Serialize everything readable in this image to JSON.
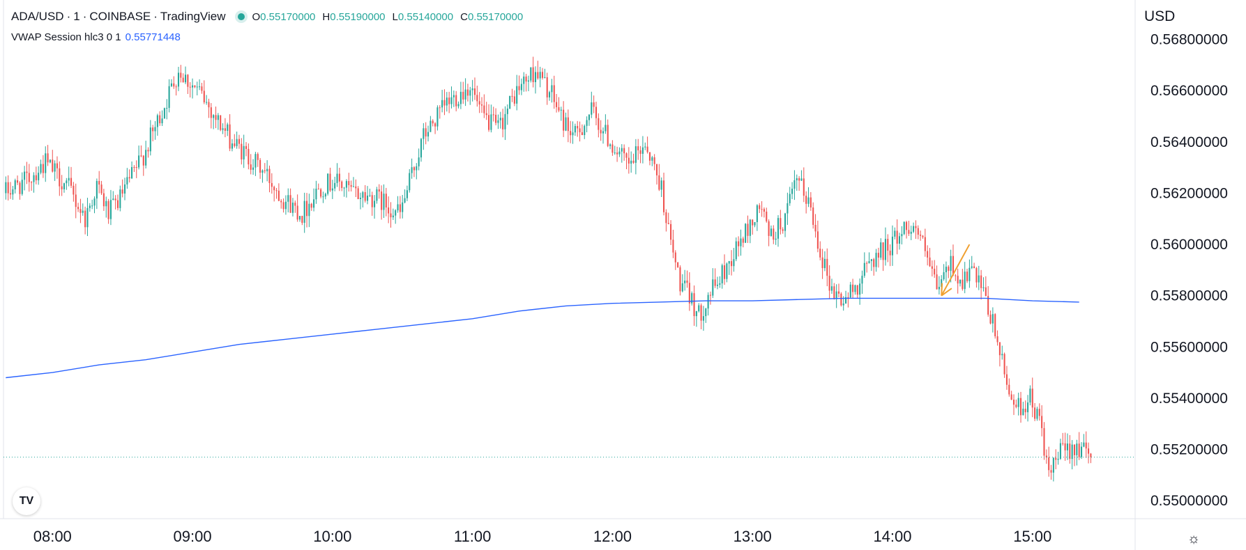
{
  "header": {
    "symbol": "ADA/USD",
    "interval": "1",
    "exchange": "COINBASE",
    "provider": "TradingView",
    "ohlc": {
      "open_label": "O",
      "open": "0.55170000",
      "high_label": "H",
      "high": "0.55190000",
      "low_label": "L",
      "low": "0.55140000",
      "close_label": "C",
      "close": "0.55170000"
    },
    "indicator": {
      "name": "VWAP Session hlc3 0 1",
      "value": "0.55771448"
    }
  },
  "price_axis": {
    "currency": "USD"
  },
  "colors": {
    "up": "#26a69a",
    "down": "#ef5350",
    "vwap": "#2962ff",
    "annotation_arrow": "#f0a030",
    "last_price_line": "#26a69a",
    "axis_border": "#e0e3eb"
  },
  "icons": {
    "logo": "tradingview-logo-icon",
    "settings": "gear-icon"
  },
  "chart_data": {
    "type": "candlestick",
    "title": "ADA/USD · 1 · COINBASE",
    "ylim": [
      0.5493,
      0.5694
    ],
    "y_ticks": [
      "0.55000000",
      "0.55200000",
      "0.55400000",
      "0.55600000",
      "0.55800000",
      "0.56000000",
      "0.56200000",
      "0.56400000",
      "0.56600000",
      "0.56800000"
    ],
    "y_tick_values": [
      0.55,
      0.552,
      0.554,
      0.556,
      0.558,
      0.56,
      0.562,
      0.564,
      0.566,
      0.568
    ],
    "x_ticks": [
      "08:00",
      "09:00",
      "10:00",
      "11:00",
      "12:00",
      "13:00",
      "14:00",
      "15:00"
    ],
    "x_tick_minutes": [
      480,
      540,
      600,
      660,
      720,
      780,
      840,
      900
    ],
    "xlim_minutes": [
      459,
      944
    ],
    "last_close": 0.5517,
    "price_path": {
      "t": [
        460,
        470,
        478,
        488,
        495,
        500,
        505,
        510,
        520,
        528,
        535,
        545,
        552,
        558,
        565,
        572,
        580,
        588,
        595,
        602,
        610,
        620,
        630,
        640,
        650,
        660,
        665,
        672,
        680,
        688,
        695,
        700,
        705,
        712,
        720,
        728,
        735,
        742,
        746,
        750,
        755,
        758,
        762,
        768,
        775,
        785,
        788,
        795,
        800,
        805,
        810,
        815,
        820,
        825,
        832,
        840,
        848,
        852,
        860,
        866,
        870,
        875,
        880,
        885,
        890,
        895,
        900,
        905,
        908,
        912,
        920,
        925
      ],
      "p": [
        0.562,
        0.5625,
        0.5632,
        0.5622,
        0.561,
        0.5623,
        0.5612,
        0.5618,
        0.5635,
        0.5652,
        0.5668,
        0.5658,
        0.5648,
        0.564,
        0.5634,
        0.5628,
        0.5618,
        0.5612,
        0.5622,
        0.5625,
        0.562,
        0.5618,
        0.5612,
        0.5642,
        0.5655,
        0.5662,
        0.565,
        0.5645,
        0.566,
        0.5668,
        0.5658,
        0.5648,
        0.5642,
        0.5652,
        0.564,
        0.563,
        0.564,
        0.5622,
        0.56,
        0.5585,
        0.5578,
        0.5572,
        0.558,
        0.5588,
        0.56,
        0.5615,
        0.5602,
        0.561,
        0.5625,
        0.5617,
        0.5598,
        0.5582,
        0.5578,
        0.5583,
        0.5594,
        0.56,
        0.5608,
        0.5605,
        0.5582,
        0.5593,
        0.5585,
        0.559,
        0.558,
        0.5566,
        0.5545,
        0.5536,
        0.554,
        0.5528,
        0.5508,
        0.5518,
        0.5522,
        0.5517
      ]
    },
    "vwap_line": {
      "name": "VWAP Session hlc3 0 1",
      "t": [
        460,
        480,
        500,
        520,
        540,
        560,
        580,
        600,
        620,
        640,
        660,
        680,
        700,
        720,
        740,
        760,
        780,
        800,
        820,
        840,
        860,
        880,
        900,
        920
      ],
      "values": [
        0.5548,
        0.555,
        0.5553,
        0.5555,
        0.5558,
        0.5561,
        0.5563,
        0.5565,
        0.5567,
        0.5569,
        0.5571,
        0.5574,
        0.5576,
        0.5577,
        0.55775,
        0.5578,
        0.5578,
        0.55785,
        0.5579,
        0.5579,
        0.5579,
        0.5579,
        0.5578,
        0.55775
      ]
    },
    "annotation": {
      "type": "arrow",
      "from": {
        "t": 873,
        "price": 0.56
      },
      "to": {
        "t": 861,
        "price": 0.558
      }
    },
    "grid": false,
    "legend": "top-left"
  }
}
